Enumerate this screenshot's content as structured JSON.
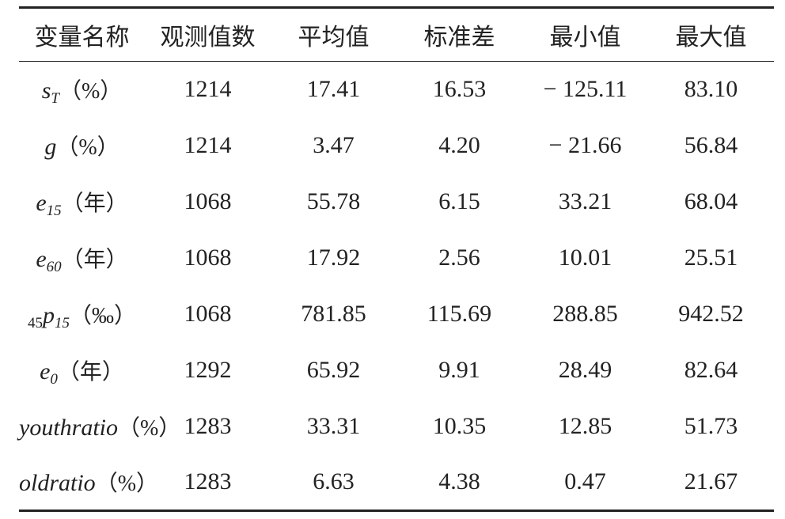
{
  "table": {
    "header": [
      "变量名称",
      "观测值数",
      "平均值",
      "标准差",
      "最小值",
      "最大值"
    ],
    "rows": [
      {
        "label": {
          "var": "s",
          "sub": "T",
          "unit": "（%）"
        },
        "values": [
          "1214",
          "17.41",
          "16.53",
          "− 125.11",
          "83.10"
        ]
      },
      {
        "label": {
          "var": "g",
          "unit": "（%）"
        },
        "values": [
          "1214",
          "3.47",
          "4.20",
          "− 21.66",
          "56.84"
        ]
      },
      {
        "label": {
          "var": "e",
          "sub": "15",
          "unit": "（年）"
        },
        "values": [
          "1068",
          "55.78",
          "6.15",
          "33.21",
          "68.04"
        ]
      },
      {
        "label": {
          "var": "e",
          "sub": "60",
          "unit": "（年）"
        },
        "values": [
          "1068",
          "17.92",
          "2.56",
          "10.01",
          "25.51"
        ]
      },
      {
        "label": {
          "presub": "45",
          "var": "p",
          "sub": "15",
          "unit": "（‰）"
        },
        "values": [
          "1068",
          "781.85",
          "115.69",
          "288.85",
          "942.52"
        ]
      },
      {
        "label": {
          "var": "e",
          "sub": "0",
          "unit": "（年）"
        },
        "values": [
          "1292",
          "65.92",
          "9.91",
          "28.49",
          "82.64"
        ]
      },
      {
        "label": {
          "var": "youthratio",
          "unit": "（%）"
        },
        "values": [
          "1283",
          "33.31",
          "10.35",
          "12.85",
          "51.73"
        ]
      },
      {
        "label": {
          "var": "oldratio",
          "unit": "（%）"
        },
        "values": [
          "1283",
          "6.63",
          "4.38",
          "0.47",
          "21.67"
        ]
      }
    ]
  }
}
